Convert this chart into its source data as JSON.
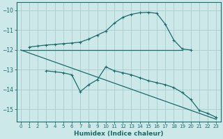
{
  "xlabel": "Humidex (Indice chaleur)",
  "bg_color": "#cce8e8",
  "grid_color": "#aacccc",
  "line_color": "#1a6b6b",
  "xlim": [
    -0.5,
    23.5
  ],
  "ylim": [
    -15.6,
    -9.6
  ],
  "yticks": [
    -15,
    -14,
    -13,
    -12,
    -11,
    -10
  ],
  "xticks": [
    0,
    1,
    2,
    3,
    4,
    5,
    6,
    7,
    8,
    9,
    10,
    11,
    12,
    13,
    14,
    15,
    16,
    17,
    18,
    19,
    20,
    21,
    22,
    23
  ],
  "line1_x": [
    1,
    2,
    3,
    4,
    5,
    6,
    7,
    8,
    9,
    10,
    11,
    12,
    13,
    14,
    15,
    16,
    17,
    18,
    19,
    20
  ],
  "line1_y": [
    -11.85,
    -11.8,
    -11.75,
    -11.72,
    -11.68,
    -11.65,
    -11.6,
    -11.45,
    -11.25,
    -11.05,
    -10.65,
    -10.35,
    -10.2,
    -10.12,
    -10.1,
    -10.15,
    -10.7,
    -11.5,
    -11.95,
    -12.0
  ],
  "line2_x": [
    0,
    19
  ],
  "line2_y": [
    -12.0,
    -12.0
  ],
  "line3_x": [
    3,
    4,
    5,
    6,
    7,
    8,
    9,
    10,
    11,
    12,
    13,
    14,
    15,
    16,
    17,
    18,
    19,
    20,
    21,
    22,
    23
  ],
  "line3_y": [
    -13.05,
    -13.1,
    -13.15,
    -13.25,
    -14.1,
    -13.75,
    -13.5,
    -12.85,
    -13.05,
    -13.15,
    -13.25,
    -13.4,
    -13.55,
    -13.65,
    -13.75,
    -13.9,
    -14.15,
    -14.5,
    -15.05,
    -15.2,
    -15.4
  ],
  "line4_x": [
    0,
    23
  ],
  "line4_y": [
    -12.0,
    -15.5
  ]
}
